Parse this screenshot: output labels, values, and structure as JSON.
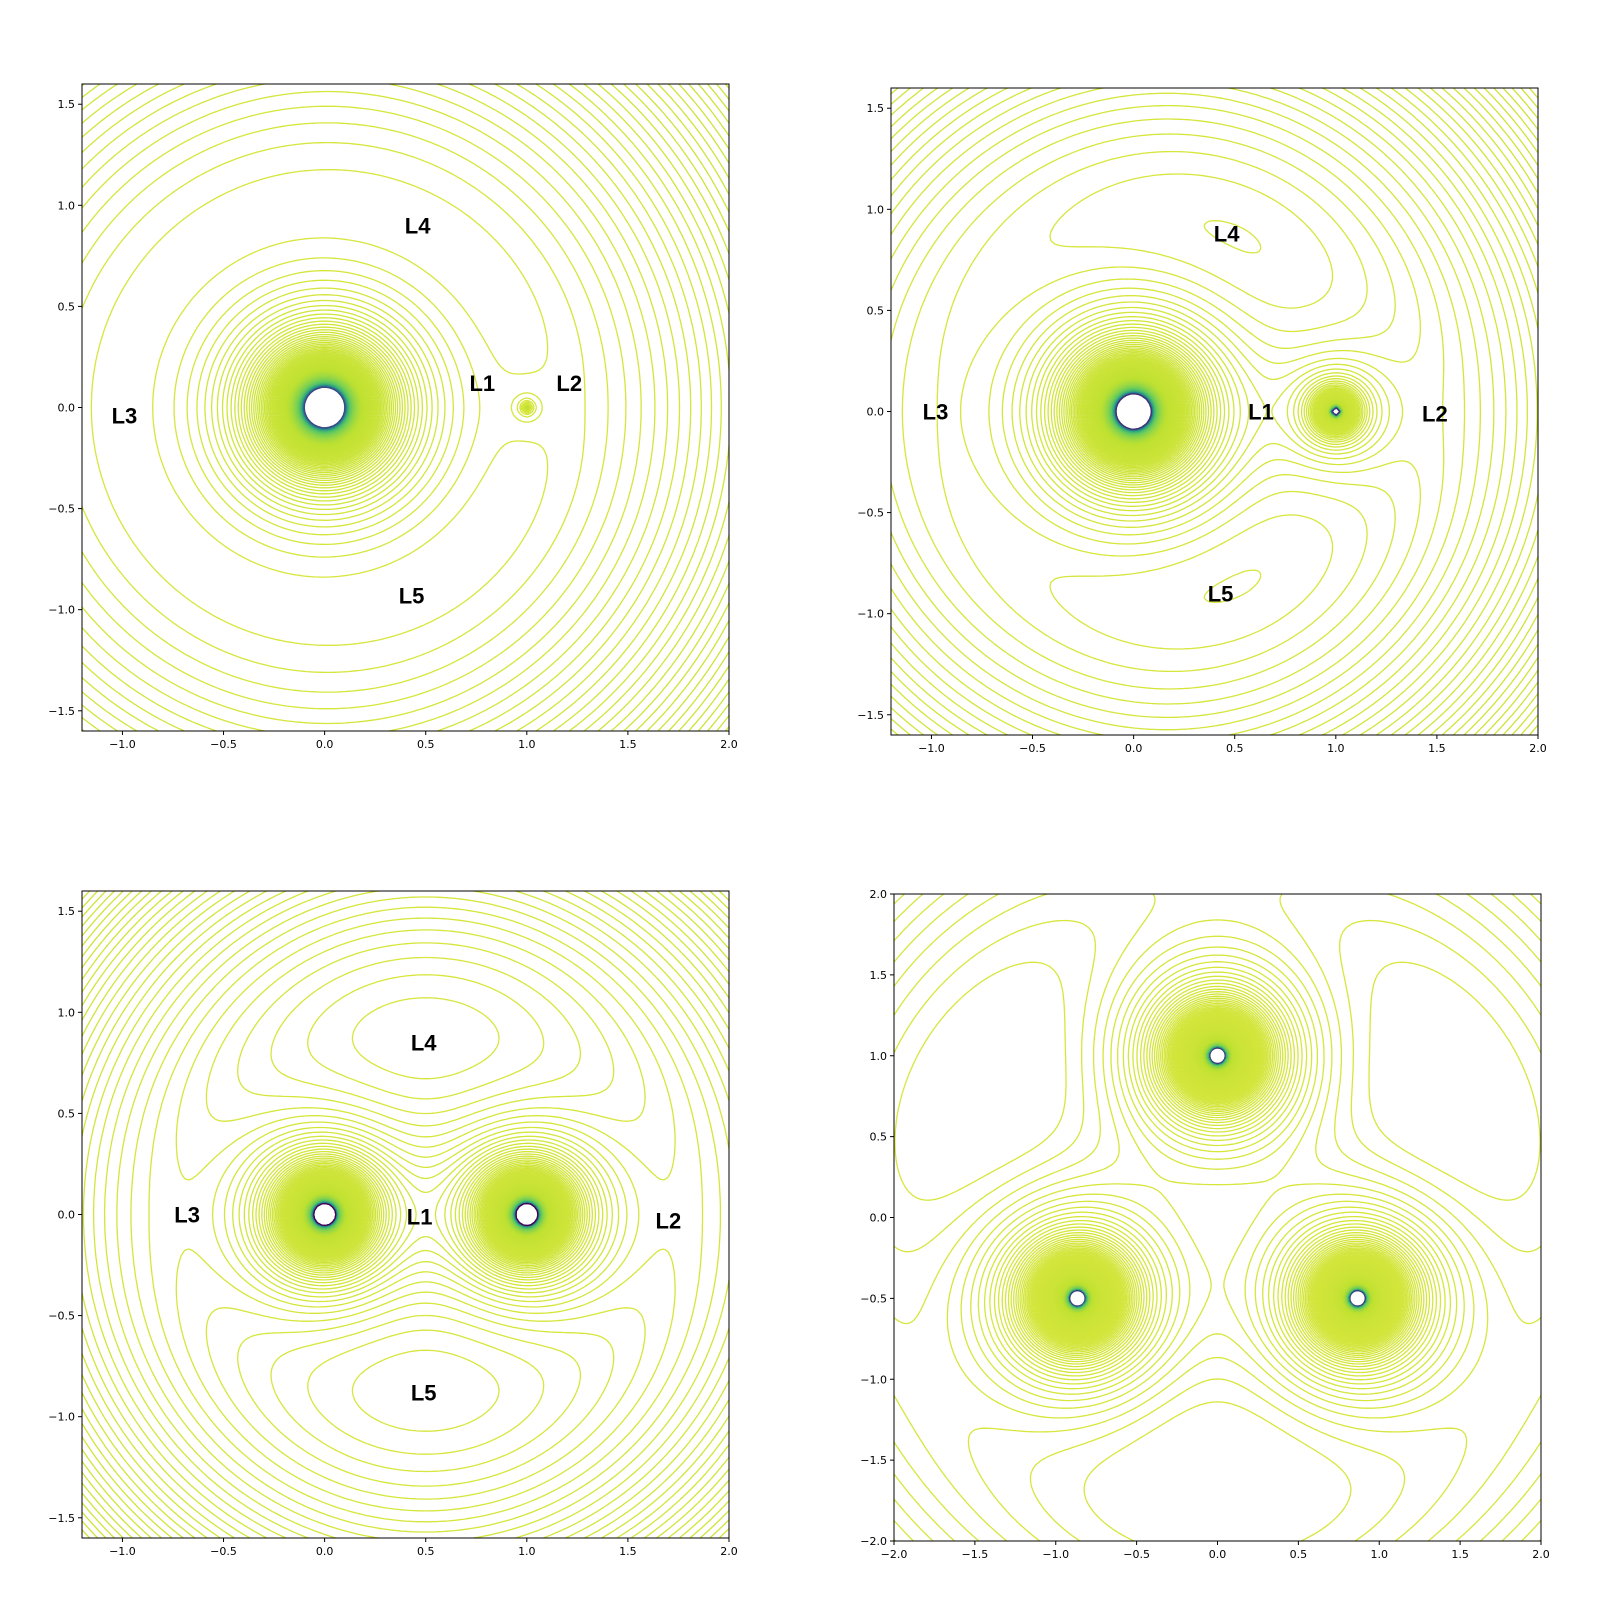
{
  "chart_data": [
    {
      "type": "contour",
      "xlim": [
        -1.2,
        2.0
      ],
      "ylim": [
        -1.6,
        1.6
      ],
      "xticks": [
        {
          "value": -1.0,
          "label": "−1.0"
        },
        {
          "value": -0.5,
          "label": "−0.5"
        },
        {
          "value": 0,
          "label": "0.0"
        },
        {
          "value": 0.5,
          "label": "0.5"
        },
        {
          "value": 1.0,
          "label": "1.0"
        },
        {
          "value": 1.5,
          "label": "1.5"
        },
        {
          "value": 2.0,
          "label": "2.0"
        }
      ],
      "yticks": [
        {
          "value": -1.5,
          "label": "−1.5"
        },
        {
          "value": -1.0,
          "label": "−1.0"
        },
        {
          "value": -0.5,
          "label": "−0.5"
        },
        {
          "value": 0,
          "label": "0.0"
        },
        {
          "value": 0.5,
          "label": "0.5"
        },
        {
          "value": 1.0,
          "label": "1.0"
        },
        {
          "value": 1.5,
          "label": "1.5"
        }
      ],
      "annotations": [
        "L4",
        "L1",
        "L2",
        "L3",
        "L5"
      ]
    },
    {
      "type": "contour",
      "xlim": [
        -1.2,
        2.0
      ],
      "ylim": [
        -1.6,
        1.6
      ],
      "xticks": [
        {
          "value": -1.0,
          "label": "−1.0"
        },
        {
          "value": -0.5,
          "label": "−0.5"
        },
        {
          "value": 0,
          "label": "0.0"
        },
        {
          "value": 0.5,
          "label": "0.5"
        },
        {
          "value": 1.0,
          "label": "1.0"
        },
        {
          "value": 1.5,
          "label": "1.5"
        },
        {
          "value": 2.0,
          "label": "2.0"
        }
      ],
      "yticks": [
        {
          "value": -1.5,
          "label": "−1.5"
        },
        {
          "value": -1.0,
          "label": "−1.0"
        },
        {
          "value": -0.5,
          "label": "−0.5"
        },
        {
          "value": 0,
          "label": "0.0"
        },
        {
          "value": 0.5,
          "label": "0.5"
        },
        {
          "value": 1.0,
          "label": "1.0"
        },
        {
          "value": 1.5,
          "label": "1.5"
        }
      ],
      "annotations": [
        "L4",
        "L3",
        "L1",
        "L2",
        "L5"
      ]
    },
    {
      "type": "contour",
      "xlim": [
        -1.2,
        2.0
      ],
      "ylim": [
        -1.6,
        1.6
      ],
      "xticks": [
        {
          "value": -1.0,
          "label": "−1.0"
        },
        {
          "value": -0.5,
          "label": "−0.5"
        },
        {
          "value": 0,
          "label": "0.0"
        },
        {
          "value": 0.5,
          "label": "0.5"
        },
        {
          "value": 1.0,
          "label": "1.0"
        },
        {
          "value": 1.5,
          "label": "1.5"
        },
        {
          "value": 2.0,
          "label": "2.0"
        }
      ],
      "yticks": [
        {
          "value": -1.5,
          "label": "−1.5"
        },
        {
          "value": -1.0,
          "label": "−1.0"
        },
        {
          "value": -0.5,
          "label": "−0.5"
        },
        {
          "value": 0,
          "label": "0.0"
        },
        {
          "value": 0.5,
          "label": "0.5"
        },
        {
          "value": 1.0,
          "label": "1.0"
        },
        {
          "value": 1.5,
          "label": "1.5"
        }
      ],
      "annotations": [
        "L4",
        "L1",
        "L3",
        "L2",
        "L5"
      ]
    },
    {
      "type": "contour",
      "xlim": [
        -2.0,
        2.0
      ],
      "ylim": [
        -2.0,
        2.0
      ],
      "xticks": [
        {
          "value": -2.0,
          "label": "−2.0"
        },
        {
          "value": -1.5,
          "label": "−1.5"
        },
        {
          "value": -1.0,
          "label": "−1.0"
        },
        {
          "value": -0.5,
          "label": "−0.5"
        },
        {
          "value": 0,
          "label": "0.0"
        },
        {
          "value": 0.5,
          "label": "0.5"
        },
        {
          "value": 1.0,
          "label": "1.0"
        },
        {
          "value": 1.5,
          "label": "1.5"
        },
        {
          "value": 2.0,
          "label": "2.0"
        }
      ],
      "yticks": [
        {
          "value": -2.0,
          "label": "−2.0"
        },
        {
          "value": -1.5,
          "label": "−1.5"
        },
        {
          "value": -1.0,
          "label": "−1.0"
        },
        {
          "value": -0.5,
          "label": "−0.5"
        },
        {
          "value": 0,
          "label": "0.0"
        },
        {
          "value": 0.5,
          "label": "0.5"
        },
        {
          "value": 1.0,
          "label": "1.0"
        },
        {
          "value": 1.5,
          "label": "1.5"
        },
        {
          "value": 2.0,
          "label": "2.0"
        }
      ],
      "annotations": []
    }
  ]
}
